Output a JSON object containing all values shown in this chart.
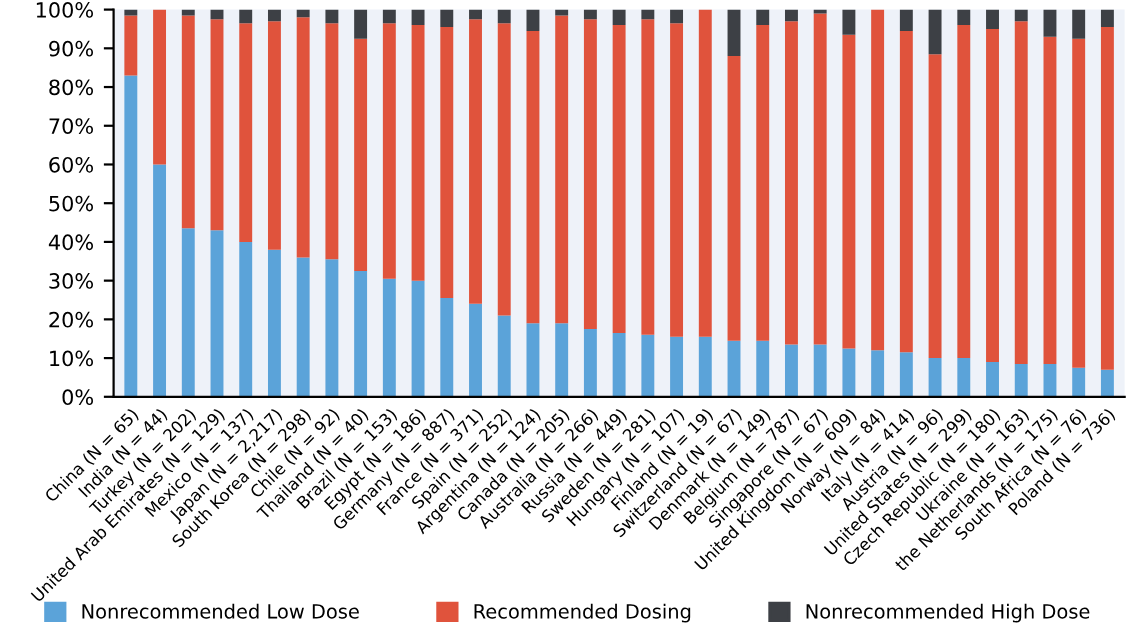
{
  "chart_data": {
    "type": "bar",
    "stacked": true,
    "categories": [
      "China (N = 65)",
      "India (N = 44)",
      "Turkey (N = 202)",
      "United Arab Emirates (N = 129)",
      "Mexico (N = 137)",
      "Japan (N = 2,217)",
      "South Korea (N = 298)",
      "Chile (N = 92)",
      "Thailand (N = 40)",
      "Brazil (N = 153)",
      "Egypt (N = 186)",
      "Germany (N = 887)",
      "France (N = 371)",
      "Spain (N = 252)",
      "Argentina (N = 124)",
      "Canada (N = 205)",
      "Australia (N = 266)",
      "Russia (N = 449)",
      "Sweden (N = 281)",
      "Hungary (N = 107)",
      "Finland (N = 19)",
      "Switzerland (N = 67)",
      "Denmark (N = 149)",
      "Belgium (N = 787)",
      "Singapore (N = 67)",
      "United Kingdom (N = 609)",
      "Norway (N = 84)",
      "Italy (N = 414)",
      "Austria (N = 96)",
      "United States (N = 299)",
      "Czech Republic (N = 180)",
      "Ukraine (N = 163)",
      "the Netherlands (N = 175)",
      "South Africa (N = 76)",
      "Poland (N = 736)"
    ],
    "series": [
      {
        "name": "Nonrecommended Low Dose",
        "color": "#5ba3d9",
        "values": [
          83,
          60,
          43.5,
          43,
          40,
          38,
          36,
          35.5,
          32.5,
          30.5,
          30,
          25.5,
          24,
          21,
          19,
          19,
          17.5,
          16.5,
          16,
          15.5,
          15.5,
          14.5,
          14.5,
          13.5,
          13.5,
          12.5,
          12,
          11.5,
          10,
          10,
          9,
          8.5,
          8.5,
          7.5,
          7
        ]
      },
      {
        "name": "Recommended Dosing",
        "color": "#e0533c",
        "values": [
          15.5,
          40,
          55,
          54.5,
          56.5,
          59,
          62,
          61,
          60,
          66,
          66,
          70,
          73.5,
          75.5,
          75.5,
          79.5,
          80,
          79.5,
          81.5,
          81,
          84.5,
          73.5,
          81.5,
          83.5,
          85.5,
          81,
          88,
          83,
          78.5,
          86,
          86,
          88.5,
          84.5,
          85,
          88.5
        ]
      },
      {
        "name": "Nonrecommended High Dose",
        "color": "#3d4045",
        "values": [
          1.5,
          0,
          1.5,
          2.5,
          3.5,
          3,
          2,
          3.5,
          7.5,
          3.5,
          4,
          4.5,
          2.5,
          3.5,
          5.5,
          1.5,
          2.5,
          4,
          2.5,
          3.5,
          0,
          12,
          4,
          3,
          1,
          6.5,
          0,
          5.5,
          11.5,
          4,
          5,
          3,
          7,
          7.5,
          4.5
        ]
      }
    ],
    "ylim": [
      0,
      100
    ],
    "yticks": [
      {
        "value": 0,
        "label": "0%"
      },
      {
        "value": 10,
        "label": "10%"
      },
      {
        "value": 20,
        "label": "20%"
      },
      {
        "value": 30,
        "label": "30%"
      },
      {
        "value": 40,
        "label": "40%"
      },
      {
        "value": 50,
        "label": "50%"
      },
      {
        "value": 60,
        "label": "60%"
      },
      {
        "value": 70,
        "label": "70%"
      },
      {
        "value": 80,
        "label": "80%"
      },
      {
        "value": 90,
        "label": "90%"
      },
      {
        "value": 100,
        "label": "100%"
      }
    ],
    "legend": "bottom",
    "grid": false
  }
}
